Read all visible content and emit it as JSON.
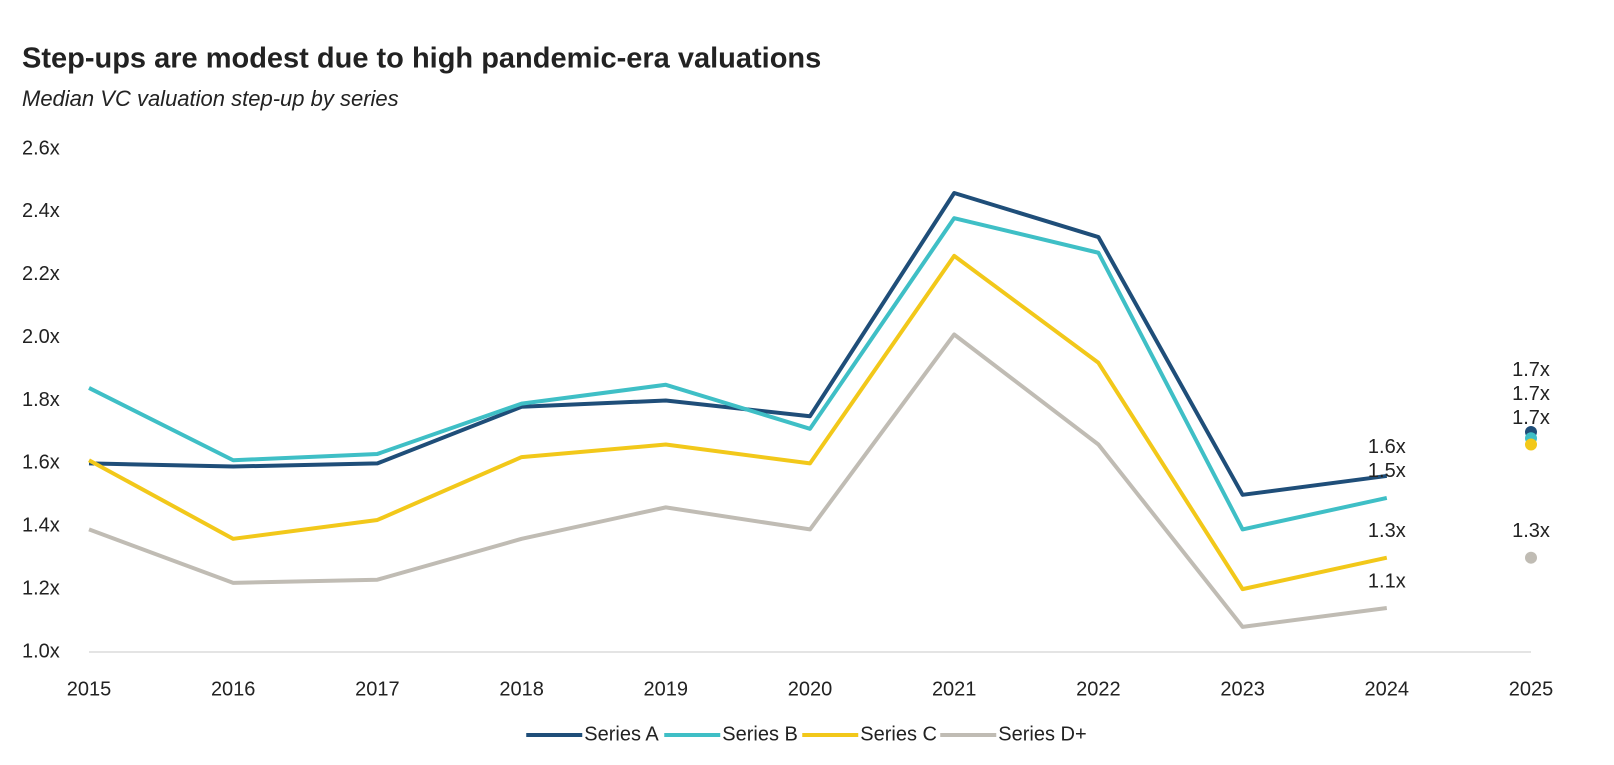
{
  "chart_data": {
    "type": "line",
    "title": "Step-ups are modest due to high pandemic-era valuations",
    "subtitle": "Median VC valuation step-up by series",
    "categories": [
      "2015",
      "2016",
      "2017",
      "2018",
      "2019",
      "2020",
      "2021",
      "2022",
      "2023",
      "2024",
      "2025"
    ],
    "last_point_separate": true,
    "ylim": [
      1.0,
      2.6
    ],
    "yticks": [
      {
        "value": 1.0,
        "label": "1.0x"
      },
      {
        "value": 1.2,
        "label": "1.2x"
      },
      {
        "value": 1.4,
        "label": "1.4x"
      },
      {
        "value": 1.6,
        "label": "1.6x"
      },
      {
        "value": 1.8,
        "label": "1.8x"
      },
      {
        "value": 2.0,
        "label": "2.0x"
      },
      {
        "value": 2.2,
        "label": "2.2x"
      },
      {
        "value": 2.4,
        "label": "2.4x"
      },
      {
        "value": 2.6,
        "label": "2.6x"
      }
    ],
    "grid": false,
    "legend": "bottom",
    "series": [
      {
        "name": "Series A",
        "color": "#1f4e79",
        "values": [
          1.6,
          1.59,
          1.6,
          1.78,
          1.8,
          1.75,
          2.46,
          2.32,
          1.5,
          1.56,
          1.7
        ],
        "value_labels": [
          null,
          null,
          null,
          null,
          null,
          null,
          null,
          null,
          null,
          "1.6x",
          "1.7x"
        ]
      },
      {
        "name": "Series B",
        "color": "#3fbfc6",
        "values": [
          1.84,
          1.61,
          1.63,
          1.79,
          1.85,
          1.71,
          2.38,
          2.27,
          1.39,
          1.49,
          1.68
        ],
        "value_labels": [
          null,
          null,
          null,
          null,
          null,
          null,
          null,
          null,
          null,
          "1.5x",
          "1.7x"
        ]
      },
      {
        "name": "Series C",
        "color": "#f2c81a",
        "values": [
          1.61,
          1.36,
          1.42,
          1.62,
          1.66,
          1.6,
          2.26,
          1.92,
          1.2,
          1.3,
          1.66
        ],
        "value_labels": [
          null,
          null,
          null,
          null,
          null,
          null,
          null,
          null,
          null,
          "1.3x",
          "1.7x"
        ]
      },
      {
        "name": "Series D+",
        "color": "#c0bcb4",
        "values": [
          1.39,
          1.22,
          1.23,
          1.36,
          1.46,
          1.39,
          2.01,
          1.66,
          1.08,
          1.14,
          1.3
        ],
        "value_labels": [
          null,
          null,
          null,
          null,
          null,
          null,
          null,
          null,
          null,
          "1.1x",
          "1.3x"
        ]
      }
    ]
  }
}
